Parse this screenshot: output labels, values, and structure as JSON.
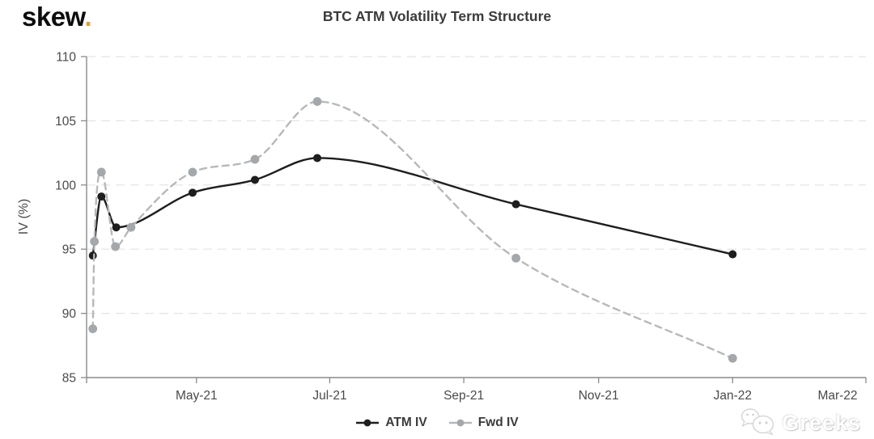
{
  "header": {
    "logo_text": "skew",
    "logo_dot": ".",
    "title": "BTC ATM Volatility Term Structure"
  },
  "colors": {
    "logo_dot": "#d8a13c",
    "axis": "#8a8a8a",
    "grid": "#e4e4e4",
    "tick_text": "#4a4a4a",
    "title_text": "#3b3b3b",
    "atm_iv": "#1e1e1e",
    "fwd_iv_line": "#b6b9bb",
    "fwd_iv_marker": "#a4a8ab"
  },
  "chart_data": {
    "type": "line",
    "title": "BTC ATM Volatility Term Structure",
    "xlabel": "",
    "ylabel": "IV (%)",
    "ylim": [
      85,
      110
    ],
    "yticks": [
      85,
      90,
      95,
      100,
      105,
      110
    ],
    "xticks": [
      {
        "label": "May-21",
        "pos": 0.141
      },
      {
        "label": "Jul-21",
        "pos": 0.312
      },
      {
        "label": "Sep-21",
        "pos": 0.484
      },
      {
        "label": "Nov-21",
        "pos": 0.657
      },
      {
        "label": "Jan-22",
        "pos": 0.829
      },
      {
        "label": "Mar-22",
        "pos": 1.0
      }
    ],
    "grid": "horizontal-dashed",
    "legend_position": "bottom-center",
    "series": [
      {
        "name": "ATM IV",
        "style": "solid",
        "points": [
          [
            0.008,
            94.5
          ],
          [
            0.019,
            99.1
          ],
          [
            0.038,
            96.7
          ],
          [
            0.136,
            99.4
          ],
          [
            0.216,
            100.4
          ],
          [
            0.296,
            102.1
          ],
          [
            0.551,
            98.5
          ],
          [
            0.829,
            94.6
          ]
        ]
      },
      {
        "name": "Fwd IV",
        "style": "dashed",
        "points": [
          [
            0.008,
            88.8
          ],
          [
            0.01,
            95.6
          ],
          [
            0.019,
            101.0
          ],
          [
            0.037,
            95.2
          ],
          [
            0.057,
            96.7
          ],
          [
            0.136,
            101.0
          ],
          [
            0.216,
            102.0
          ],
          [
            0.296,
            106.5
          ],
          [
            0.551,
            94.3
          ],
          [
            0.829,
            86.5
          ]
        ]
      }
    ]
  },
  "legend": {
    "items": [
      "ATM IV",
      "Fwd IV"
    ]
  },
  "watermark": {
    "icon": "wechat-icon",
    "text": "Greeks"
  }
}
